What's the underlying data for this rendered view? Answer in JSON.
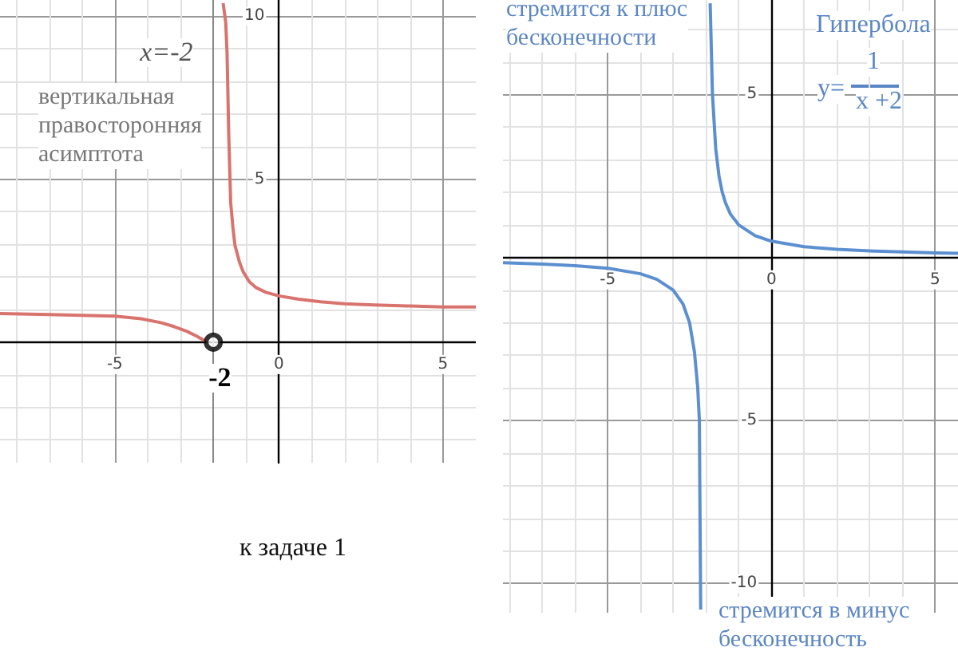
{
  "chart_data": [
    {
      "type": "line",
      "xlim": [
        -8.5,
        6
      ],
      "ylim": [
        -3.7,
        10.5
      ],
      "xticks": [
        -5,
        0,
        5
      ],
      "yticks": [
        5,
        10
      ],
      "grid": true,
      "marker": "none",
      "series": [
        {
          "color": "#d9736e",
          "x": [
            -8.5,
            -7,
            -5,
            -4.2,
            -3.6,
            -3.2,
            -2.8,
            -2.5,
            -2.24,
            -2,
            -1.7,
            -1.62,
            -1.58,
            -1.53,
            -1.47,
            -1.4,
            -1.34,
            -1.2,
            -1.09,
            -0.9,
            -0.69,
            -0.4,
            0,
            0.6,
            1.27,
            2,
            2.91,
            4,
            5,
            6
          ],
          "values": [
            0.88,
            0.85,
            0.8,
            0.72,
            0.6,
            0.48,
            0.33,
            0.18,
            0.03,
            null,
            10.4,
            9.8,
            8.86,
            6.4,
            4.28,
            3.5,
            2.97,
            2.45,
            2.16,
            1.85,
            1.67,
            1.53,
            1.42,
            1.32,
            1.24,
            1.18,
            1.14,
            1.11,
            1.08,
            1.08
          ]
        },
        {
          "type": "scatter",
          "marker": "circle",
          "color": "#000000",
          "x": [
            -2
          ],
          "values": [
            0
          ]
        }
      ],
      "ref_lines": [
        {
          "axis": "x",
          "value": -2,
          "label": "x=-2",
          "color": "#888888"
        }
      ],
      "annotations": [
        "вертикальная\nправосторонняя\nасимптота",
        {
          "text": "-2",
          "x": -2,
          "y": 0
        },
        "к задаче 1"
      ]
    },
    {
      "type": "line",
      "xlim": [
        -8.2,
        5.7
      ],
      "ylim": [
        -10.9,
        7.9
      ],
      "xticks": [
        -5,
        0,
        5
      ],
      "yticks": [
        -10,
        -5,
        5
      ],
      "grid": true,
      "marker": "none",
      "series": [
        {
          "color": "#5b8fd0",
          "x": [
            -8.2,
            -7,
            -6,
            -5,
            -4,
            -3.5,
            -3,
            -2.7,
            -2.5,
            -2.35,
            -2.25,
            -2.2,
            -2.18,
            -2.16,
            -2,
            -1.87,
            -1.8,
            -1.7,
            -1.6,
            -1.5,
            -1.4,
            -1.25,
            -1,
            -0.5,
            0,
            1,
            2,
            3,
            4,
            5,
            5.7
          ],
          "values": [
            -0.16,
            -0.2,
            -0.25,
            -0.33,
            -0.5,
            -0.67,
            -1,
            -1.43,
            -2,
            -2.9,
            -4,
            -5,
            -8,
            -10.8,
            null,
            7.8,
            5,
            3.33,
            2.5,
            2,
            1.67,
            1.33,
            1,
            0.67,
            0.5,
            0.33,
            0.25,
            0.2,
            0.17,
            0.14,
            0.13
          ]
        }
      ],
      "annotations": [
        "стремится к плюс\nбесконечности",
        "Гипербола",
        "y=",
        "1",
        "x +2",
        "стремится в минус\nбесконечность"
      ]
    }
  ]
}
